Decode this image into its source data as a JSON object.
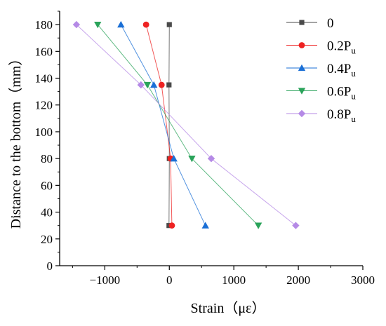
{
  "chart_data": {
    "type": "line",
    "xlabel": "Strain（με）",
    "ylabel": "Distance to the bottom（mm）",
    "xlim": [
      -1700,
      3000
    ],
    "ylim": [
      0,
      190
    ],
    "xticks": [
      -1000,
      0,
      1000,
      2000,
      3000
    ],
    "yticks": [
      0,
      20,
      40,
      60,
      80,
      100,
      120,
      140,
      160,
      180
    ],
    "grid": false,
    "legend_position": "top-right",
    "series": [
      {
        "name": "0",
        "name_sub": "",
        "color": "#4a4a4a",
        "marker": "square",
        "points": [
          [
            0,
            180
          ],
          [
            -5,
            135
          ],
          [
            0,
            80
          ],
          [
            -5,
            30
          ]
        ]
      },
      {
        "name": "0.2P",
        "name_sub": "u",
        "color": "#ee2222",
        "marker": "circle",
        "points": [
          [
            -360,
            180
          ],
          [
            -120,
            135
          ],
          [
            20,
            80
          ],
          [
            40,
            30
          ]
        ]
      },
      {
        "name": "0.4P",
        "name_sub": "u",
        "color": "#1a6fd6",
        "marker": "triangle-up",
        "points": [
          [
            -750,
            180
          ],
          [
            -240,
            135
          ],
          [
            70,
            80
          ],
          [
            560,
            30
          ]
        ]
      },
      {
        "name": "0.6P",
        "name_sub": "u",
        "color": "#2aa35a",
        "marker": "triangle-down",
        "points": [
          [
            -1110,
            180
          ],
          [
            -340,
            135
          ],
          [
            350,
            80
          ],
          [
            1380,
            30
          ]
        ]
      },
      {
        "name": "0.8P",
        "name_sub": "u",
        "color": "#b58ae6",
        "marker": "diamond",
        "points": [
          [
            -1440,
            180
          ],
          [
            -440,
            135
          ],
          [
            650,
            80
          ],
          [
            1960,
            30
          ]
        ]
      }
    ]
  }
}
